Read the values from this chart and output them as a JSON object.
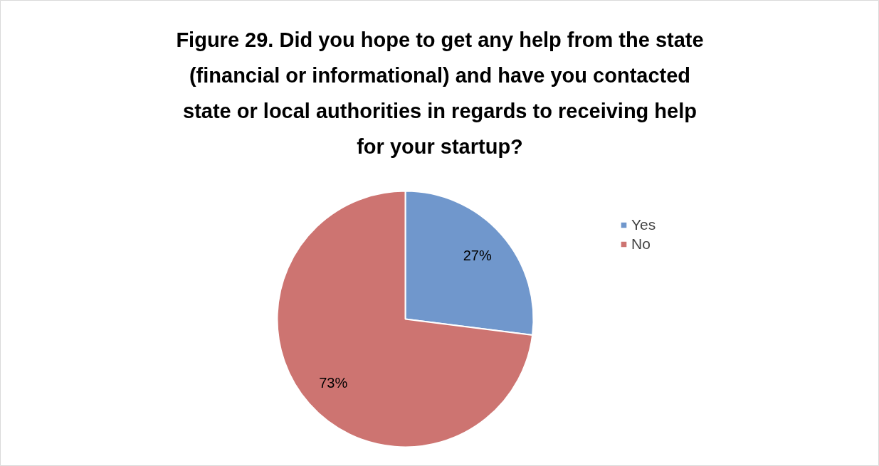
{
  "chart_data": {
    "type": "pie",
    "title": "Figure 29. Did you hope to get any help from the state (financial or informational) and have you contacted state or local authorities in regards to receiving help for your startup?",
    "categories": [
      "Yes",
      "No"
    ],
    "values": [
      27,
      73
    ],
    "colors": [
      "#7097cc",
      "#cd7471"
    ],
    "value_labels": [
      "27%",
      "73%"
    ],
    "legend": "right"
  }
}
